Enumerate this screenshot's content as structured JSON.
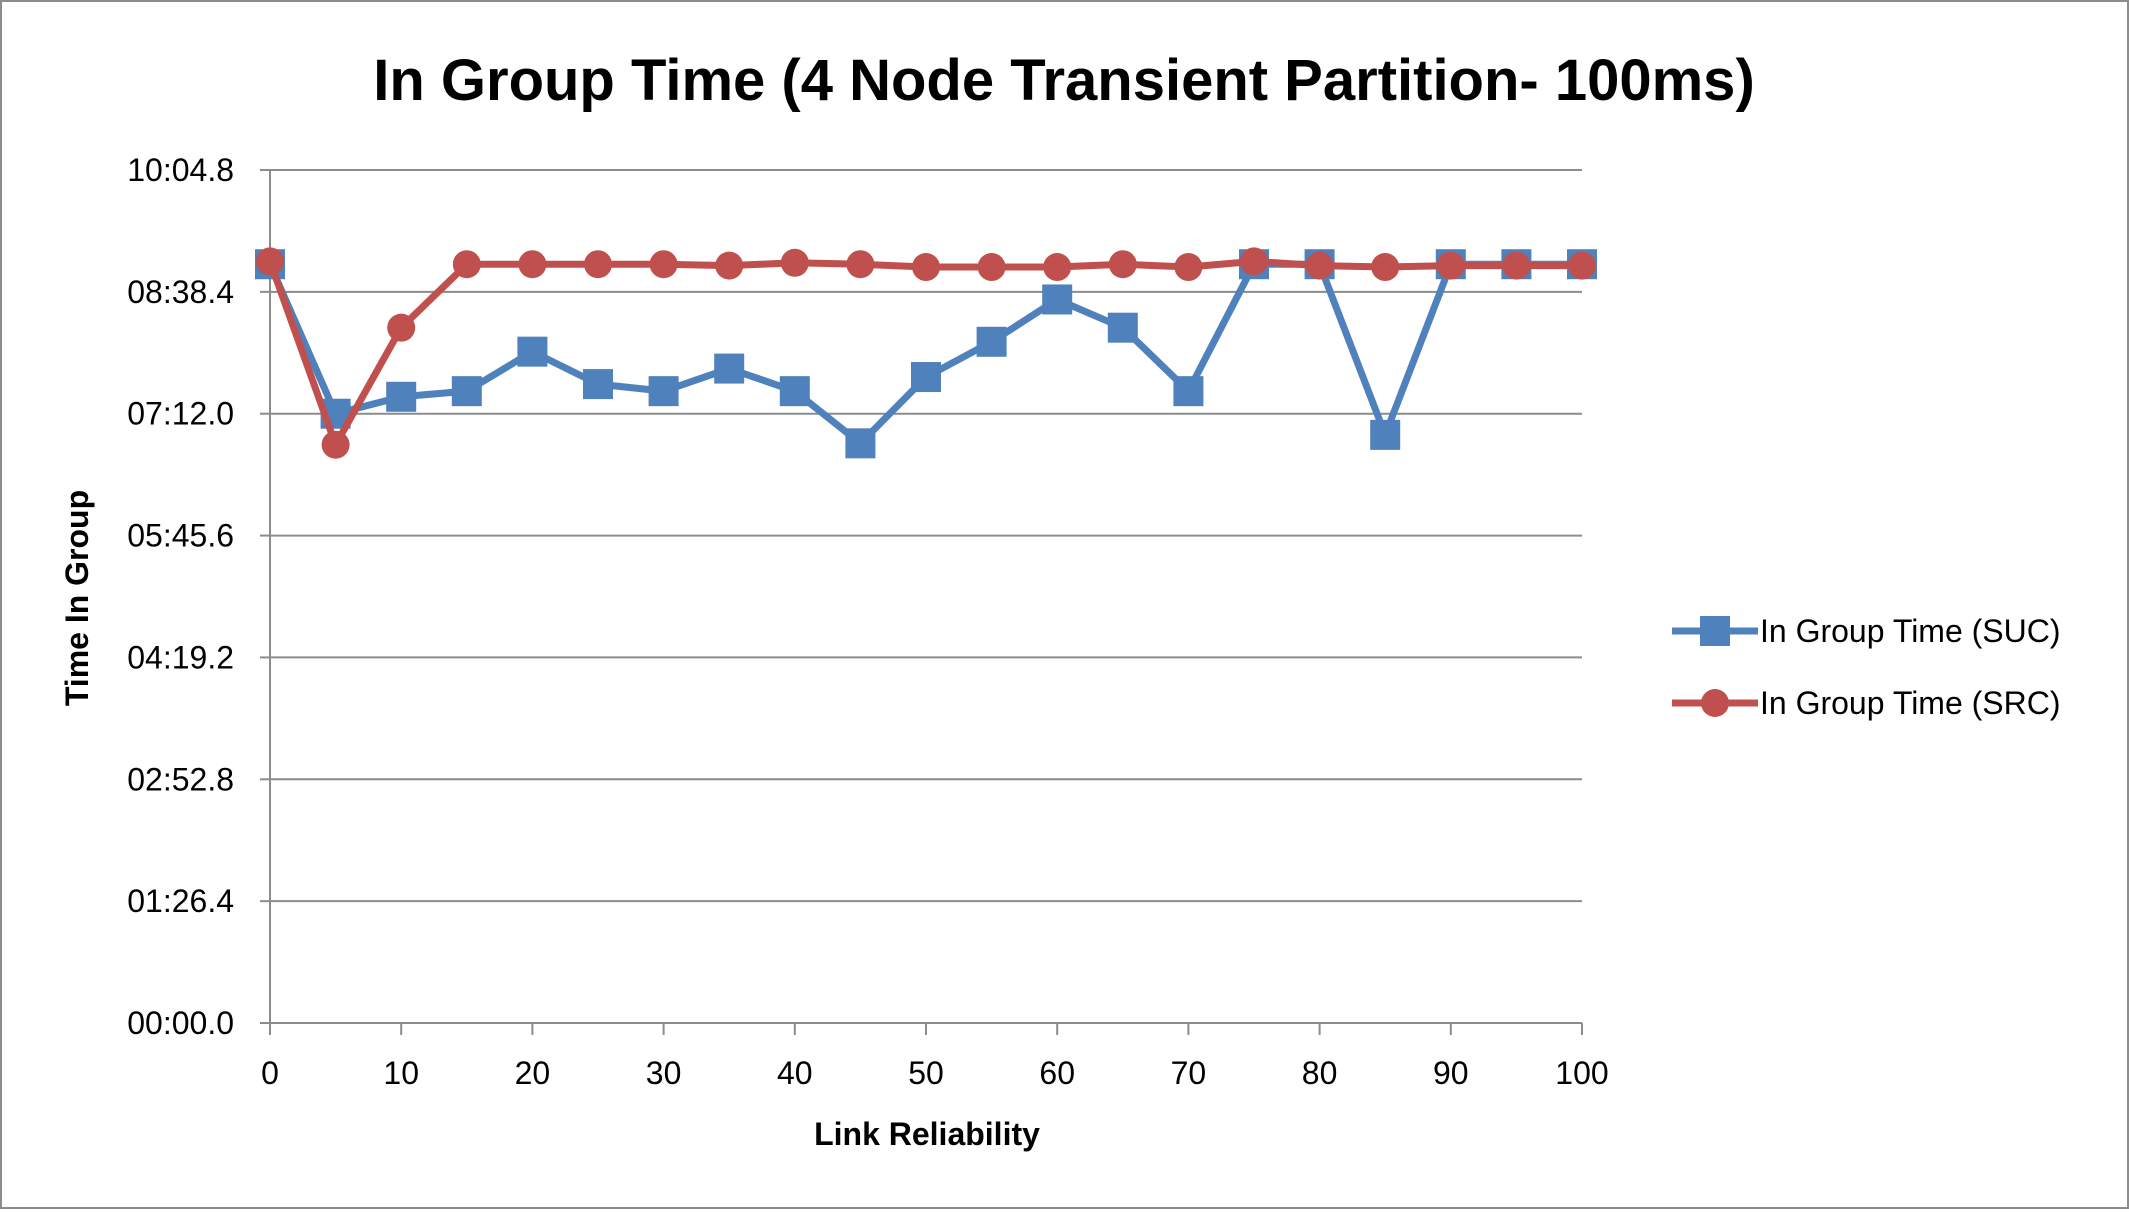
{
  "chart_data": {
    "type": "line",
    "title": "In Group Time (4 Node Transient Partition- 100ms)",
    "xlabel": "Link Reliability",
    "ylabel": "Time In Group",
    "x": [
      0,
      5,
      10,
      15,
      20,
      25,
      30,
      35,
      40,
      45,
      50,
      55,
      60,
      65,
      70,
      75,
      80,
      85,
      90,
      95,
      100
    ],
    "x_ticks": [
      0,
      10,
      20,
      30,
      40,
      50,
      60,
      70,
      80,
      90,
      100
    ],
    "x_tick_labels": [
      "0",
      "10",
      "20",
      "30",
      "40",
      "50",
      "60",
      "70",
      "80",
      "90",
      "100"
    ],
    "xlim": [
      0,
      100
    ],
    "y_unit": "seconds",
    "ylim": [
      0,
      604.8
    ],
    "y_ticks": [
      0,
      86.4,
      172.8,
      259.2,
      345.6,
      432.0,
      518.4,
      604.8
    ],
    "y_tick_labels": [
      "00:00.0",
      "01:26.4",
      "02:52.8",
      "04:19.2",
      "05:45.6",
      "07:12.0",
      "08:38.4",
      "10:04.8"
    ],
    "grid": true,
    "legend_position": "right",
    "series": [
      {
        "name": "In Group Time (SUC)",
        "color": "#4f81bd",
        "marker": "square",
        "values": [
          538.0,
          432.0,
          444.0,
          448.0,
          476.0,
          453.0,
          448.0,
          464.0,
          448.0,
          411.0,
          458.0,
          483.0,
          513.0,
          493.0,
          448.0,
          538.0,
          538.0,
          417.0,
          538.0,
          538.0,
          538.0
        ]
      },
      {
        "name": "In Group Time (SRC)",
        "color": "#c0504d",
        "marker": "circle",
        "values": [
          540.0,
          410.0,
          493.0,
          538.0,
          538.0,
          538.0,
          538.0,
          537.0,
          539.0,
          538.0,
          536.0,
          536.0,
          536.0,
          538.0,
          536.0,
          540.0,
          537.0,
          536.0,
          537.0,
          537.0,
          537.0
        ]
      }
    ]
  }
}
